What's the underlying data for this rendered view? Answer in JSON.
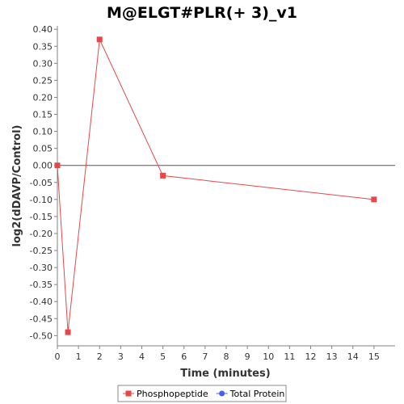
{
  "chart_data": {
    "type": "line",
    "title": "M@ELGT#PLR(+ 3)_v1",
    "xlabel": "Time (minutes)",
    "ylabel": "log2(dDAVP/Control)",
    "xlim": [
      0,
      16
    ],
    "ylim": [
      -0.53,
      0.41
    ],
    "x_ticks": [
      0,
      1,
      2,
      3,
      4,
      5,
      6,
      7,
      8,
      9,
      10,
      11,
      12,
      13,
      14,
      15
    ],
    "y_ticks": [
      0.4,
      0.35,
      0.3,
      0.25,
      0.2,
      0.15,
      0.1,
      0.05,
      0.0,
      -0.05,
      -0.1,
      -0.15,
      -0.2,
      -0.25,
      -0.3,
      -0.35,
      -0.4,
      -0.45,
      -0.5
    ],
    "zero_line": true,
    "grid": false,
    "legend_position": "bottom-center",
    "series": [
      {
        "name": "Phosphopeptide",
        "color": "#e8474a",
        "marker": "square",
        "x": [
          0,
          0.5,
          2,
          5,
          15
        ],
        "y": [
          0.0,
          -0.49,
          0.37,
          -0.03,
          -0.1
        ]
      },
      {
        "name": "Total Protein",
        "color": "#4a5de8",
        "marker": "circle",
        "x": [],
        "y": []
      }
    ]
  }
}
